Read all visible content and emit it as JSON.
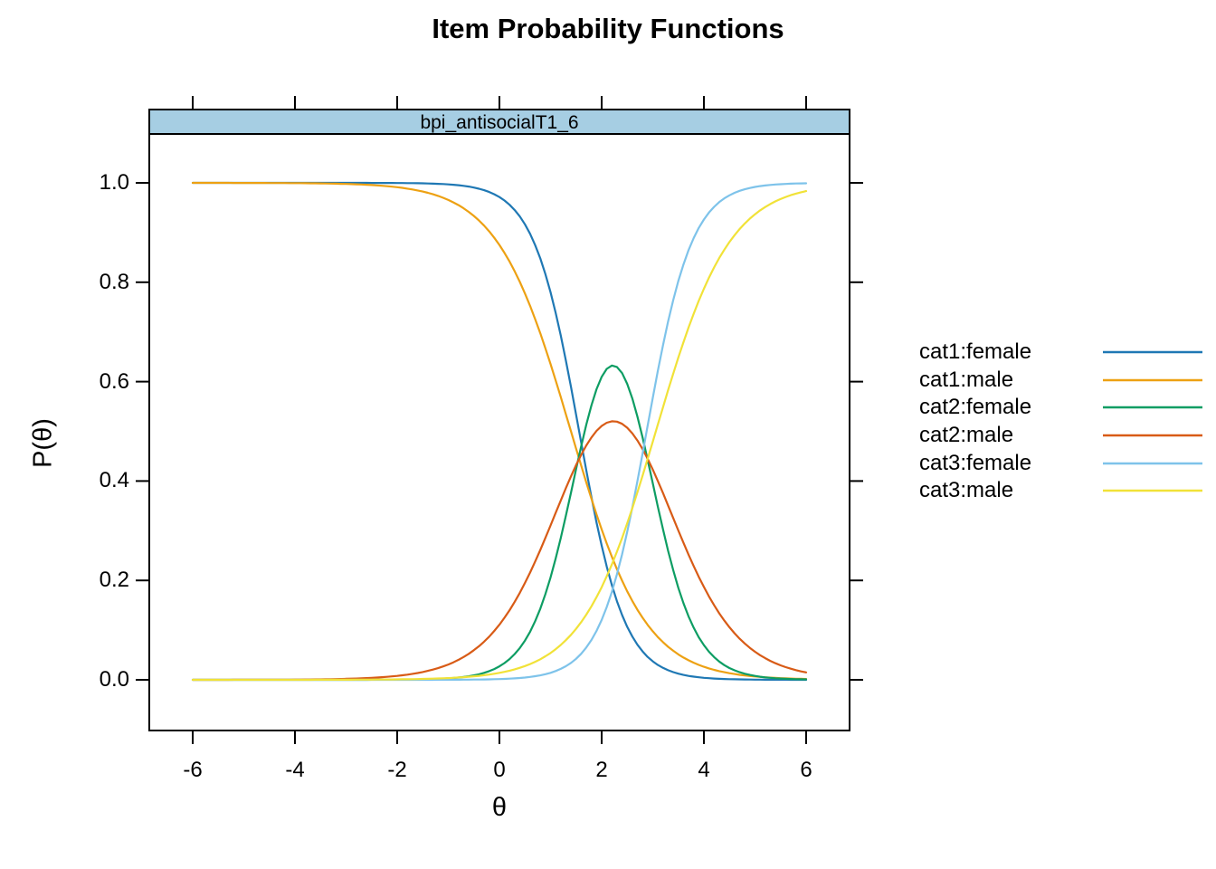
{
  "chart_data": {
    "type": "line",
    "title": "Item Probability Functions",
    "panel_label": "bpi_antisocialT1_6",
    "xlabel": "θ",
    "ylabel": "P(θ)",
    "xlim": [
      -6.85,
      6.85
    ],
    "ylim": [
      -0.1,
      1.1
    ],
    "x_data_range": [
      -6,
      6
    ],
    "x_ticks": [
      {
        "value": -6,
        "label": "-6"
      },
      {
        "value": -4,
        "label": "-4"
      },
      {
        "value": -2,
        "label": "-2"
      },
      {
        "value": 0,
        "label": "0"
      },
      {
        "value": 2,
        "label": "2"
      },
      {
        "value": 4,
        "label": "4"
      },
      {
        "value": 6,
        "label": "6"
      }
    ],
    "y_ticks": [
      {
        "value": 0.0,
        "label": "0.0"
      },
      {
        "value": 0.2,
        "label": "0.2"
      },
      {
        "value": 0.4,
        "label": "0.4"
      },
      {
        "value": 0.6,
        "label": "0.6"
      },
      {
        "value": 0.8,
        "label": "0.8"
      },
      {
        "value": 1.0,
        "label": "1.0"
      }
    ],
    "model": "graded-response: sigma(z)=1/(1+exp(-z)); cat1 = 1 - sigma(a*(theta-b1)); cat2 = sigma(a*(theta-b1)) - sigma(a*(theta-b2)); cat3 = sigma(a*(theta-b2))",
    "groups": {
      "female": {
        "a": 2.26,
        "b1": 1.56,
        "b2": 2.88
      },
      "male": {
        "a": 1.39,
        "b1": 1.4,
        "b2": 3.06
      }
    },
    "series": [
      {
        "name": "cat1:female",
        "group": "female",
        "category": 1,
        "color": "#1f78b4"
      },
      {
        "name": "cat1:male",
        "group": "male",
        "category": 1,
        "color": "#eda113"
      },
      {
        "name": "cat2:female",
        "group": "female",
        "category": 2,
        "color": "#0d9d63"
      },
      {
        "name": "cat2:male",
        "group": "male",
        "category": 2,
        "color": "#d85b16"
      },
      {
        "name": "cat3:female",
        "group": "female",
        "category": 3,
        "color": "#7ec3ea"
      },
      {
        "name": "cat3:male",
        "group": "male",
        "category": 3,
        "color": "#f1e238"
      }
    ],
    "key_points": [
      {
        "series": "cat2:female",
        "note": "peak",
        "x": 2.22,
        "y": 0.633
      },
      {
        "series": "cat2:male",
        "note": "peak",
        "x": 2.23,
        "y": 0.52
      },
      {
        "series": "cat1:female",
        "note": "P=0.5 crossing",
        "x": 1.56
      },
      {
        "series": "cat1:male",
        "note": "P=0.5 crossing",
        "x": 1.4
      },
      {
        "series": "cat3:female",
        "note": "P=0.5 crossing",
        "x": 2.88
      },
      {
        "series": "cat3:male",
        "note": "P=0.5 crossing",
        "x": 3.06
      }
    ],
    "legend_position": "right",
    "grid": false,
    "colors": {
      "strip_fill": "#a6cee3",
      "axis": "#000000",
      "background": "#ffffff"
    }
  }
}
